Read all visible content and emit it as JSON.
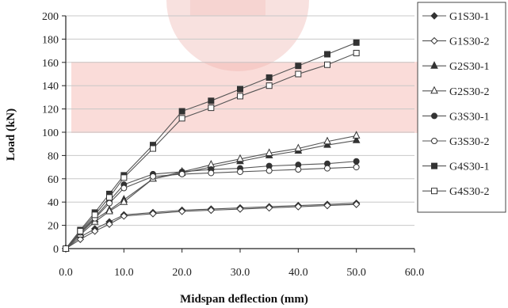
{
  "chart_data": {
    "type": "line",
    "title": "",
    "xlabel": "Midspan deflection (mm)",
    "ylabel": "Load (kN)",
    "xlim": [
      0,
      60
    ],
    "ylim": [
      0,
      200
    ],
    "x_ticks": [
      "0.0",
      "10.0",
      "20.0",
      "30.0",
      "40.0",
      "50.0",
      "60.0"
    ],
    "y_ticks": [
      "0",
      "20",
      "40",
      "60",
      "80",
      "100",
      "120",
      "140",
      "160",
      "180",
      "200"
    ],
    "grid": "horizontal",
    "legend_position": "right",
    "series": [
      {
        "name": "G1S30-1",
        "marker": "diamond-filled",
        "x": [
          0,
          2.5,
          5,
          7.5,
          10,
          15,
          20,
          25,
          30,
          35,
          40,
          45,
          50
        ],
        "y": [
          0,
          10,
          17,
          23,
          29,
          31,
          33,
          34,
          35,
          36,
          37,
          38,
          39
        ]
      },
      {
        "name": "G1S30-2",
        "marker": "diamond-open",
        "x": [
          0,
          2.5,
          5,
          7.5,
          10,
          15,
          20,
          25,
          30,
          35,
          40,
          45,
          50
        ],
        "y": [
          0,
          8,
          15,
          21,
          28,
          30,
          32,
          33,
          34,
          35,
          36,
          37,
          38
        ]
      },
      {
        "name": "G2S30-1",
        "marker": "triangle-filled",
        "x": [
          0,
          2.5,
          5,
          7.5,
          10,
          15,
          20,
          25,
          30,
          35,
          40,
          45,
          50
        ],
        "y": [
          0,
          13,
          25,
          33,
          42,
          60,
          65,
          70,
          75,
          80,
          84,
          89,
          93
        ]
      },
      {
        "name": "G2S30-2",
        "marker": "triangle-open",
        "x": [
          0,
          2.5,
          5,
          7.5,
          10,
          15,
          20,
          25,
          30,
          35,
          40,
          45,
          50
        ],
        "y": [
          0,
          12,
          23,
          32,
          40,
          60,
          66,
          72,
          77,
          82,
          86,
          92,
          97
        ]
      },
      {
        "name": "G3S30-1",
        "marker": "circle-filled",
        "x": [
          0,
          2.5,
          5,
          7.5,
          10,
          15,
          20,
          25,
          30,
          35,
          40,
          45,
          50
        ],
        "y": [
          0,
          14,
          27,
          41,
          55,
          64,
          66,
          68,
          69,
          71,
          72,
          73,
          75
        ]
      },
      {
        "name": "G3S30-2",
        "marker": "circle-open",
        "x": [
          0,
          2.5,
          5,
          7.5,
          10,
          15,
          20,
          25,
          30,
          35,
          40,
          45,
          50
        ],
        "y": [
          0,
          14,
          26,
          39,
          52,
          62,
          64,
          65,
          66,
          67,
          68,
          69,
          70
        ]
      },
      {
        "name": "G4S30-1",
        "marker": "square-filled",
        "x": [
          0,
          2.5,
          5,
          7.5,
          10,
          15,
          20,
          25,
          30,
          35,
          40,
          45,
          50
        ],
        "y": [
          0,
          16,
          31,
          47,
          63,
          89,
          118,
          127,
          137,
          147,
          157,
          167,
          177
        ]
      },
      {
        "name": "G4S30-2",
        "marker": "square-open",
        "x": [
          0,
          2.5,
          5,
          7.5,
          10,
          15,
          20,
          25,
          30,
          35,
          40,
          45,
          50
        ],
        "y": [
          0,
          15,
          29,
          44,
          61,
          86,
          112,
          121,
          131,
          140,
          150,
          158,
          168
        ]
      }
    ],
    "colors": {
      "line": "#555555",
      "grid": "#c8c8c8",
      "axis": "#222222",
      "watermark": "#d9261c"
    }
  }
}
